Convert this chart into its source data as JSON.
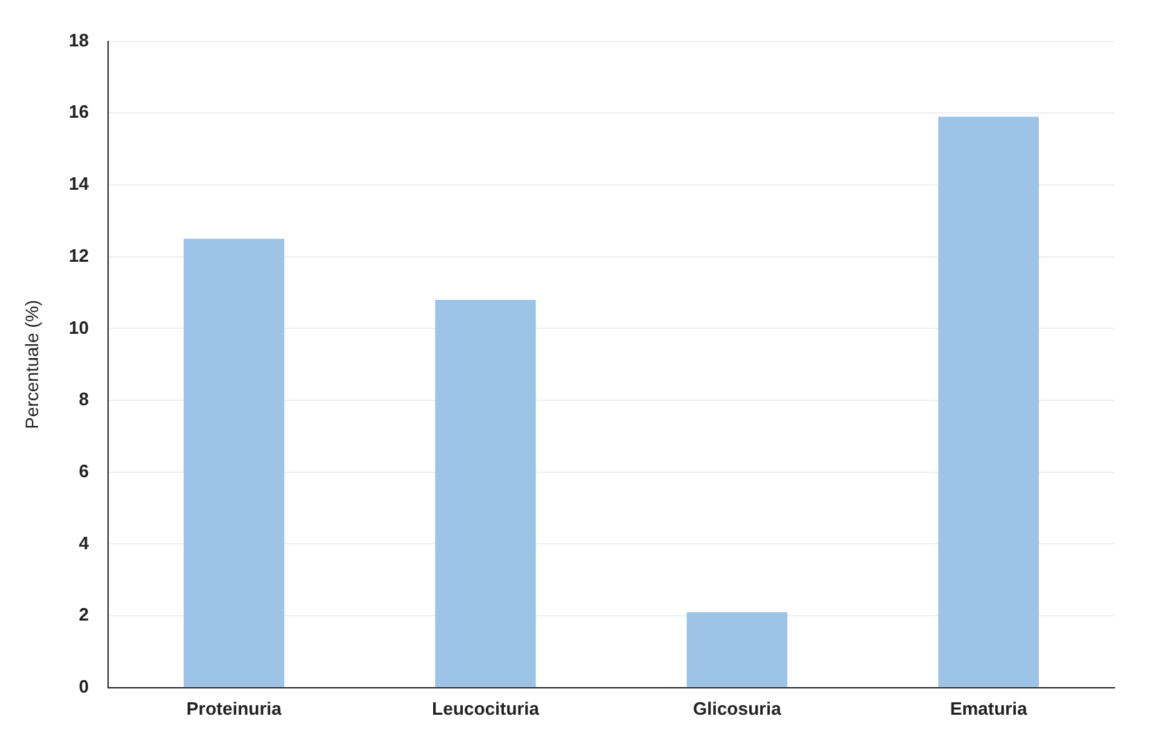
{
  "chart_data": {
    "type": "bar",
    "ylabel": "Percentuale (%)",
    "categories": [
      "Proteinuria",
      "Leucocituria",
      "Glicosuria",
      "Ematuria"
    ],
    "values": [
      12.5,
      10.8,
      2.1,
      15.9
    ],
    "color": "#9dc3e6",
    "ylim": [
      0,
      18
    ],
    "yticks": [
      0,
      2,
      4,
      6,
      8,
      10,
      12,
      14,
      16,
      18
    ],
    "grid": "y"
  }
}
